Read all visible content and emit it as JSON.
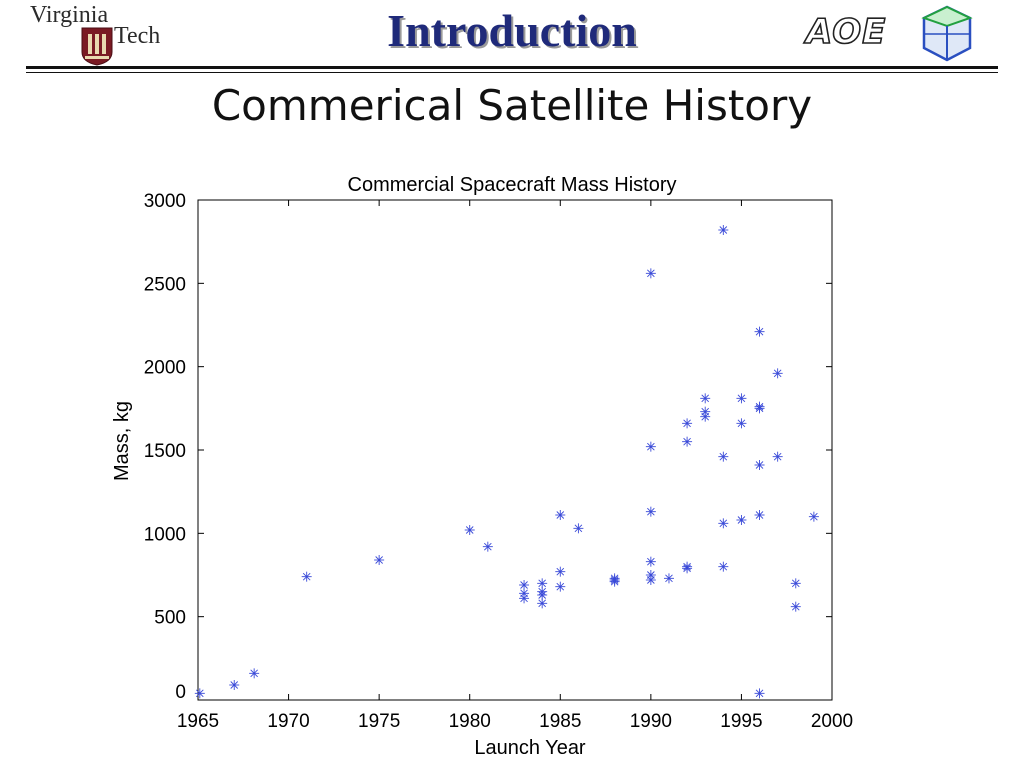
{
  "header": {
    "title": "Introduction",
    "subtitle": "Commerical Satellite History",
    "logo_left": {
      "line1": "Virginia",
      "line2": "Tech",
      "emblem": "vt-shield-icon"
    },
    "logo_right": {
      "text": "AOE",
      "emblem": "aoe-polyhedron-icon"
    }
  },
  "colors": {
    "title": "#1f2a7a",
    "marker": "#3a4ad8",
    "axis": "#000000"
  },
  "chart_data": {
    "type": "scatter",
    "title": "Commercial Spacecraft Mass History",
    "xlabel": "Launch Year",
    "ylabel": "Mass, kg",
    "xlim": [
      1965,
      2000
    ],
    "ylim": [
      0,
      3000
    ],
    "xticks": [
      1965,
      1970,
      1975,
      1980,
      1985,
      1990,
      1995,
      2000
    ],
    "yticks": [
      0,
      500,
      1000,
      1500,
      2000,
      2500,
      3000
    ],
    "grid": false,
    "marker": "asterisk",
    "series": [
      {
        "x": [
          1965.1,
          1967.0,
          1968.1,
          1971.0,
          1975.0,
          1980.0,
          1981.0,
          1983.0,
          1983.0,
          1983.0,
          1984.0,
          1984.0,
          1984.0,
          1984.0,
          1985.0,
          1985.0,
          1985.0,
          1986.0,
          1988.0,
          1988.0,
          1988.0,
          1990.0,
          1990.0,
          1990.0,
          1990.0,
          1990.0,
          1990.0,
          1991.0,
          1992.0,
          1992.0,
          1992.0,
          1992.0,
          1993.0,
          1993.0,
          1993.0,
          1994.0,
          1994.0,
          1994.0,
          1994.0,
          1995.0,
          1995.0,
          1995.0,
          1996.0,
          1996.0,
          1996.0,
          1996.0,
          1996.0,
          1996.0,
          1997.0,
          1997.0,
          1998.0,
          1998.0,
          1999.0
        ],
        "y": [
          40,
          90,
          160,
          740,
          840,
          1020,
          920,
          690,
          640,
          610,
          700,
          650,
          630,
          580,
          1110,
          770,
          680,
          1030,
          730,
          720,
          710,
          2560,
          1520,
          1130,
          830,
          750,
          720,
          730,
          1660,
          1550,
          800,
          790,
          1810,
          1730,
          1700,
          2820,
          1460,
          1060,
          800,
          1810,
          1660,
          1080,
          2210,
          1760,
          1750,
          1410,
          1110,
          40,
          1960,
          1460,
          700,
          560,
          1100
        ]
      }
    ]
  }
}
